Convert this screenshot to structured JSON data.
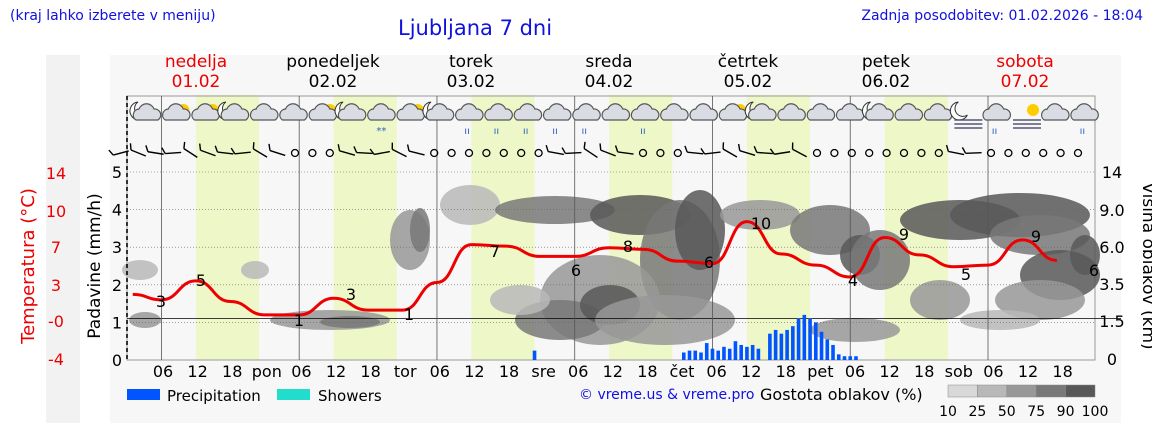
{
  "header": {
    "note": "(kraj lahko izberete v meniju)",
    "title": "Ljubljana 7 dni",
    "updated": "Zadnja posodobitev: 01.02.2026 - 18:04"
  },
  "days": [
    {
      "name": "nedelja",
      "date": "01.02",
      "color": "#ee0000"
    },
    {
      "name": "ponedeljek",
      "date": "02.02",
      "color": "#000000"
    },
    {
      "name": "torek",
      "date": "03.02",
      "color": "#000000"
    },
    {
      "name": "sreda",
      "date": "04.02",
      "color": "#000000"
    },
    {
      "name": "četrtek",
      "date": "05.02",
      "color": "#000000"
    },
    {
      "name": "petek",
      "date": "06.02",
      "color": "#000000"
    },
    {
      "name": "sobota",
      "date": "07.02",
      "color": "#ee0000"
    }
  ],
  "legend": {
    "precipitation": "Precipitation",
    "showers": "Showers",
    "credit": "© vreme.us & vreme.pro",
    "cloud_title": "Gostota oblakov (%)",
    "cloud_ticks": [
      "10",
      "25",
      "50",
      "75",
      "90",
      "100"
    ],
    "cloud_colors": [
      "#d8d8d8",
      "#b8b8b8",
      "#989898",
      "#787878",
      "#585858"
    ]
  },
  "chart_data": {
    "type": "line",
    "x_tick_labels": [
      "06",
      "12",
      "18",
      "pon",
      "06",
      "12",
      "18",
      "tor",
      "06",
      "12",
      "18",
      "sre",
      "06",
      "12",
      "18",
      "čet",
      "06",
      "12",
      "18",
      "pet",
      "06",
      "12",
      "18",
      "sob",
      "06",
      "12",
      "18"
    ],
    "y_left_precip": {
      "label": "Padavine (mm/h)",
      "ticks": [
        "0",
        "1",
        "2",
        "3",
        "4",
        "5"
      ],
      "range": [
        0,
        5
      ]
    },
    "y_left_temp": {
      "label": "Temperatura (°C)",
      "ticks": [
        "-4",
        "-0",
        "3",
        "7",
        "10",
        "14"
      ],
      "color": "#ee0000"
    },
    "y_right": {
      "label": "Višina oblakov (km)",
      "ticks": [
        "0",
        "1.5",
        "3.5",
        "6.0",
        "9.0",
        "14"
      ]
    },
    "temperature": {
      "color": "#ee0000",
      "hours": [
        19,
        24,
        30,
        36,
        42,
        48,
        54,
        60,
        66,
        72,
        78,
        84,
        90,
        96,
        102,
        108,
        114,
        120,
        126,
        132,
        138,
        144,
        150,
        156,
        162,
        168,
        174,
        180
      ],
      "values": [
        3.5,
        2.8,
        5.2,
        2.6,
        0.9,
        0.9,
        3.0,
        1.5,
        1.5,
        5.0,
        9.8,
        9.6,
        8.3,
        8.3,
        9.4,
        9.2,
        7.7,
        7.4,
        12.7,
        8.6,
        7.2,
        5.7,
        10.7,
        8.5,
        7.0,
        7.2,
        10.4,
        7.8
      ]
    },
    "temperature_labels": [
      {
        "hour": 25,
        "text": "3"
      },
      {
        "hour": 36,
        "text": "5"
      },
      {
        "hour": 61,
        "text": "1"
      },
      {
        "hour": 79,
        "text": "3"
      },
      {
        "hour": 90,
        "text": "1"
      },
      {
        "hour": 113,
        "text": "7"
      },
      {
        "hour": 126,
        "text": "6"
      },
      {
        "hour": 134,
        "text": "8"
      },
      {
        "hour": 149,
        "text": "6"
      },
      {
        "hour": 159,
        "text": "10"
      },
      {
        "hour": 174,
        "text": "4"
      },
      {
        "hour": 183,
        "text": "9"
      },
      {
        "hour": 197,
        "text": "5"
      },
      {
        "hour": 209,
        "text": "9"
      },
      {
        "hour": 220,
        "text": "6"
      }
    ],
    "precipitation": {
      "color": "#0055ff",
      "bars": [
        {
          "hour": 89,
          "mm": 0.25
        },
        {
          "hour": 115,
          "mm": 0.2
        },
        {
          "hour": 116,
          "mm": 0.25
        },
        {
          "hour": 117,
          "mm": 0.25
        },
        {
          "hour": 118,
          "mm": 0.2
        },
        {
          "hour": 119,
          "mm": 0.45
        },
        {
          "hour": 120,
          "mm": 0.3
        },
        {
          "hour": 121,
          "mm": 0.25
        },
        {
          "hour": 122,
          "mm": 0.35
        },
        {
          "hour": 123,
          "mm": 0.3
        },
        {
          "hour": 124,
          "mm": 0.5
        },
        {
          "hour": 125,
          "mm": 0.4
        },
        {
          "hour": 126,
          "mm": 0.35
        },
        {
          "hour": 127,
          "mm": 0.4
        },
        {
          "hour": 128,
          "mm": 0.3
        },
        {
          "hour": 130,
          "mm": 0.7
        },
        {
          "hour": 131,
          "mm": 0.8
        },
        {
          "hour": 132,
          "mm": 0.7
        },
        {
          "hour": 133,
          "mm": 0.8
        },
        {
          "hour": 134,
          "mm": 0.9
        },
        {
          "hour": 135,
          "mm": 1.1
        },
        {
          "hour": 136,
          "mm": 1.2
        },
        {
          "hour": 137,
          "mm": 1.1
        },
        {
          "hour": 138,
          "mm": 1.0
        },
        {
          "hour": 139,
          "mm": 0.75
        },
        {
          "hour": 140,
          "mm": 0.55
        },
        {
          "hour": 141,
          "mm": 0.4
        },
        {
          "hour": 142,
          "mm": 0.15
        },
        {
          "hour": 143,
          "mm": 0.1
        },
        {
          "hour": 144,
          "mm": 0.1
        },
        {
          "hour": 145,
          "mm": 0.1
        },
        {
          "hour": 200,
          "mm": 0.25
        },
        {
          "hour": 222,
          "mm": 0.15
        }
      ]
    },
    "weather_icons": [
      "moon-cloud",
      "sun-cloud",
      "sun-cloud",
      "moon-cloud",
      "cloud",
      "cloud",
      "cloud-sun",
      "moon-cloud",
      "snow-cloud",
      "sun-cloud",
      "moon-cloud",
      "rain-cloud",
      "rain-cloud",
      "rain-cloud",
      "rain-cloud",
      "rain-cloud",
      "cloud",
      "rain-cloud",
      "cloud",
      "cloud",
      "sun-cloud",
      "moon-cloud",
      "cloud",
      "cloud",
      "cloud",
      "moon-cloud",
      "cloud",
      "cloud",
      "moon-fog",
      "rain-cloud",
      "fog-sun",
      "cloud",
      "rain-cloud"
    ],
    "wind": "wind barbs (W/E flags) and calm circles per 3 h",
    "grid": true,
    "cloud_density_heatmap": true
  }
}
